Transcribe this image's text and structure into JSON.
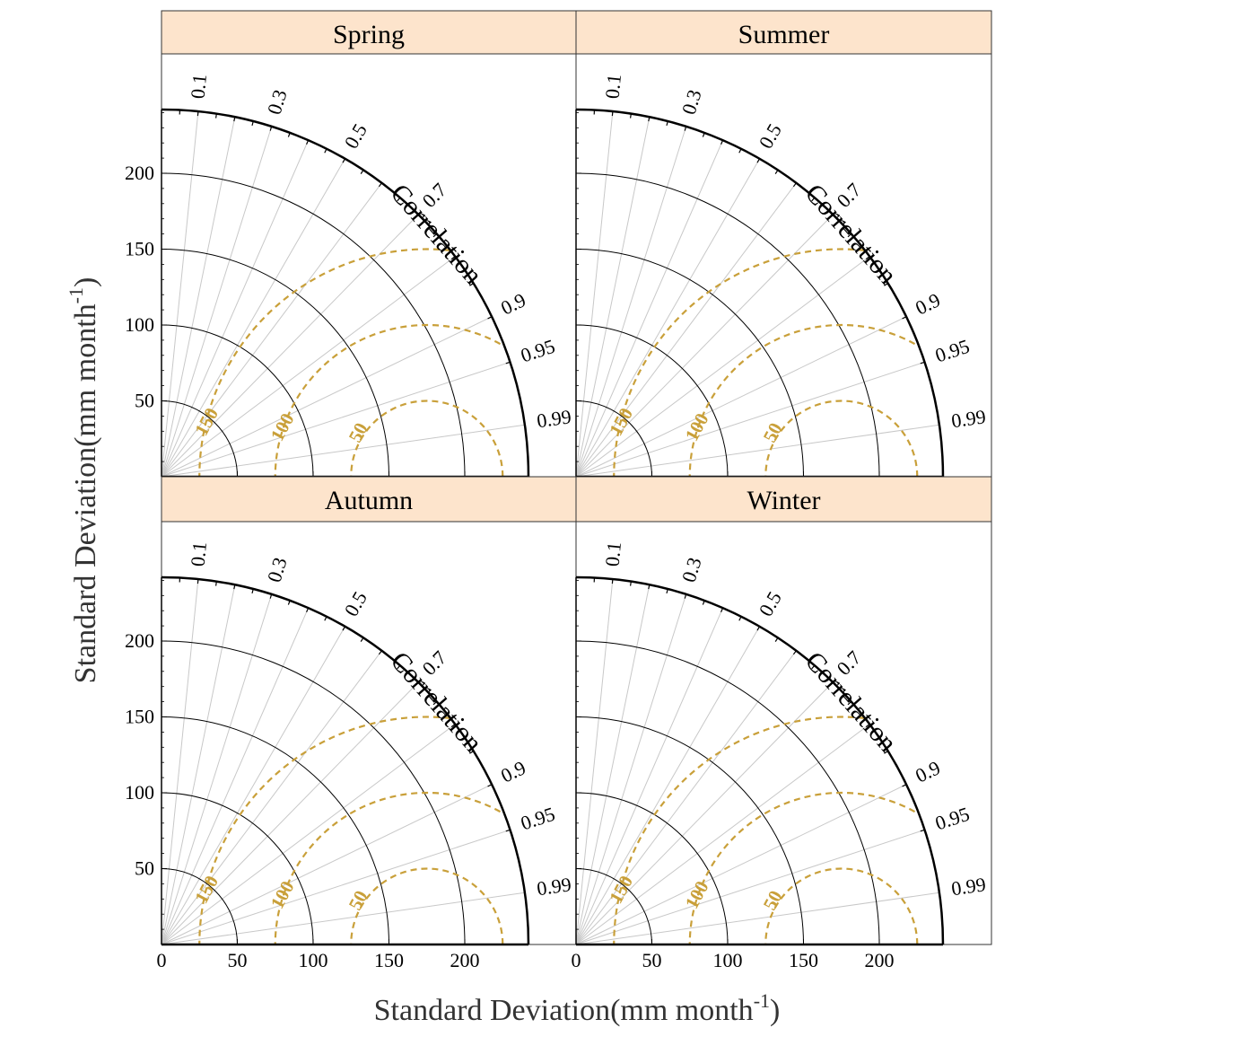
{
  "colors": {
    "header_fill": "#FDE4CC",
    "rms_contour": "#C9A03A",
    "correlation_ray": "#c8c8c8",
    "std_arc": "#000000"
  },
  "axes": {
    "x_title": "Standard Deviation(mm month",
    "x_title_sup": "-1",
    "x_title_tail": ")",
    "y_title": "Standard Deviation(mm month",
    "y_title_sup": "-1",
    "y_title_tail": ")"
  },
  "chart_data": [
    {
      "type": "taylor",
      "title": "Spring",
      "std_ticks": [
        50,
        100,
        150,
        200
      ],
      "std_max": 242,
      "correlation_ticks": [
        0.1,
        0.3,
        0.5,
        0.7,
        0.9,
        0.95,
        0.99
      ],
      "correlation_label": "Correlation",
      "rms_reference_std": 175,
      "rms_contours": [
        50,
        100,
        150
      ],
      "series": []
    },
    {
      "type": "taylor",
      "title": "Summer",
      "std_ticks": [
        50,
        100,
        150,
        200
      ],
      "std_max": 242,
      "correlation_ticks": [
        0.1,
        0.3,
        0.5,
        0.7,
        0.9,
        0.95,
        0.99
      ],
      "correlation_label": "Correlation",
      "rms_reference_std": 175,
      "rms_contours": [
        50,
        100,
        150
      ],
      "series": []
    },
    {
      "type": "taylor",
      "title": "Autumn",
      "std_ticks": [
        50,
        100,
        150,
        200
      ],
      "std_max": 242,
      "correlation_ticks": [
        0.1,
        0.3,
        0.5,
        0.7,
        0.9,
        0.95,
        0.99
      ],
      "correlation_label": "Correlation",
      "rms_reference_std": 175,
      "rms_contours": [
        50,
        100,
        150
      ],
      "series": []
    },
    {
      "type": "taylor",
      "title": "Winter",
      "std_ticks": [
        50,
        100,
        150,
        200
      ],
      "std_max": 242,
      "correlation_ticks": [
        0.1,
        0.3,
        0.5,
        0.7,
        0.9,
        0.95,
        0.99
      ],
      "correlation_label": "Correlation",
      "rms_reference_std": 175,
      "rms_contours": [
        50,
        100,
        150
      ],
      "series": []
    }
  ],
  "x_axis_ticks": [
    "0",
    "50",
    "100",
    "150",
    "200"
  ],
  "y_axis_ticks": [
    "50",
    "100",
    "150",
    "200"
  ]
}
